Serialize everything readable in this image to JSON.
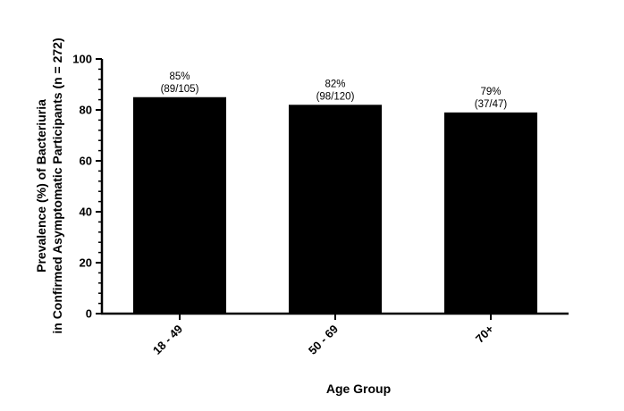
{
  "chart_data": {
    "type": "bar",
    "categories": [
      "18 - 49",
      "50 - 69",
      "70+"
    ],
    "values": [
      85,
      82,
      79
    ],
    "data_labels": [
      {
        "percent": "85%",
        "count": "(89/105)"
      },
      {
        "percent": "82%",
        "count": "(98/120)"
      },
      {
        "percent": "79%",
        "count": "(37/47)"
      }
    ],
    "xlabel": "Age Group",
    "ylabel_lines": [
      "Prevalence  (%) of Bacteriuria",
      "in Confirmed Asymptomatic Participants (n = 272)"
    ],
    "ylim": [
      0,
      100
    ],
    "yticks": [
      0,
      20,
      40,
      60,
      80,
      100
    ],
    "minor_ticks_per_major": 4,
    "grid": false,
    "bar_color": "#000000",
    "xtick_rotation": -45
  }
}
